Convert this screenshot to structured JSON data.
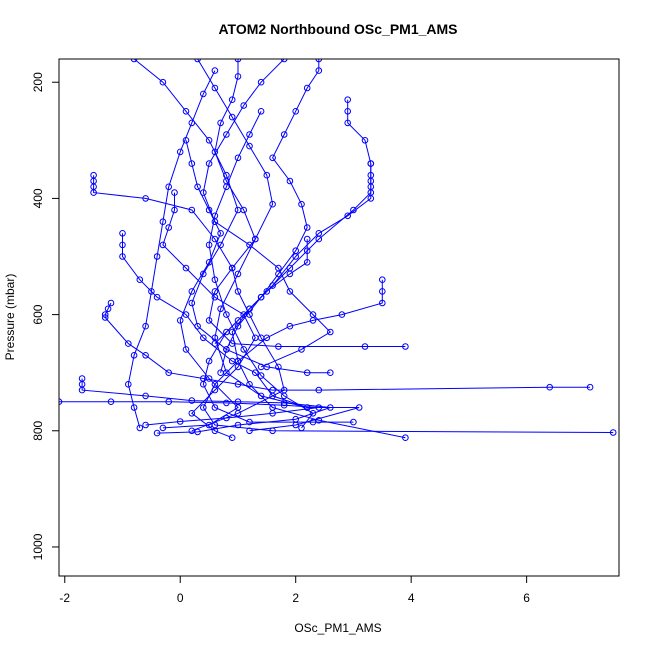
{
  "chart_data": {
    "type": "scatter",
    "title": "ATOM2 Northbound OSc_PM1_AMS",
    "xlabel": "OSc_PM1_AMS",
    "ylabel": "Pressure (mbar)",
    "xlim": [
      -2.1,
      7.6
    ],
    "ylim": [
      1050,
      160
    ],
    "y_reversed": true,
    "xticks": [
      -2,
      0,
      2,
      4,
      6
    ],
    "yticks": [
      200,
      400,
      600,
      800,
      1000
    ],
    "grid": false,
    "legend": "none",
    "connected": true,
    "colors": {
      "series": "#0000ff",
      "axis": "#000000"
    },
    "series": [
      {
        "values": [
          [
            -1.5,
            360
          ],
          [
            -1.5,
            370
          ],
          [
            -1.5,
            380
          ],
          [
            -1.5,
            390
          ],
          [
            -0.6,
            400
          ],
          [
            0.2,
            420
          ],
          [
            0.6,
            470
          ],
          [
            0.9,
            520
          ],
          [
            1.0,
            560
          ],
          [
            1.2,
            600
          ],
          [
            1.4,
            640
          ],
          [
            1.7,
            690
          ],
          [
            1.8,
            730
          ],
          [
            1.0,
            770
          ],
          [
            0.2,
            800
          ]
        ]
      },
      {
        "values": [
          [
            -1.0,
            460
          ],
          [
            -1.0,
            480
          ],
          [
            -1.0,
            500
          ],
          [
            -0.7,
            540
          ],
          [
            -0.4,
            570
          ],
          [
            0.1,
            600
          ],
          [
            0.4,
            640
          ],
          [
            0.9,
            680
          ],
          [
            1.3,
            700
          ],
          [
            1.6,
            740
          ],
          [
            2.2,
            760
          ],
          [
            3.1,
            760
          ],
          [
            2.0,
            790
          ],
          [
            1.2,
            800
          ]
        ]
      },
      {
        "values": [
          [
            -1.2,
            580
          ],
          [
            -1.25,
            590
          ],
          [
            -1.3,
            600
          ],
          [
            -1.3,
            605
          ],
          [
            -0.9,
            650
          ],
          [
            -0.6,
            670
          ],
          [
            -0.2,
            700
          ],
          [
            0.4,
            710
          ],
          [
            1.0,
            720
          ],
          [
            1.6,
            730
          ],
          [
            2.4,
            730
          ],
          [
            6.4,
            725
          ],
          [
            7.1,
            725
          ]
        ]
      },
      {
        "values": [
          [
            -1.7,
            710
          ],
          [
            -1.7,
            720
          ],
          [
            -1.7,
            730
          ],
          [
            -0.6,
            740
          ],
          [
            0.2,
            748
          ],
          [
            1.0,
            750
          ],
          [
            1.8,
            752
          ],
          [
            2.6,
            760
          ],
          [
            2.0,
            780
          ],
          [
            1.0,
            790
          ],
          [
            0.3,
            802
          ],
          [
            -0.4,
            804
          ]
        ]
      },
      {
        "values": [
          [
            -2.1,
            750
          ],
          [
            -1.2,
            750
          ],
          [
            -0.2,
            750
          ],
          [
            0.8,
            752
          ],
          [
            1.8,
            756
          ],
          [
            2.4,
            760
          ],
          [
            1.6,
            770
          ],
          [
            0.8,
            778
          ],
          [
            0.0,
            784
          ],
          [
            -0.6,
            790
          ]
        ]
      },
      {
        "values": [
          [
            -0.8,
            160
          ],
          [
            -0.3,
            200
          ],
          [
            0.1,
            250
          ],
          [
            0.5,
            300
          ],
          [
            0.8,
            360
          ],
          [
            1.0,
            420
          ],
          [
            0.7,
            480
          ],
          [
            0.4,
            530
          ],
          [
            0.2,
            580
          ],
          [
            0.3,
            620
          ],
          [
            0.8,
            660
          ],
          [
            1.5,
            690
          ],
          [
            2.2,
            700
          ],
          [
            2.6,
            700
          ]
        ]
      },
      {
        "values": [
          [
            0.3,
            160
          ],
          [
            0.6,
            210
          ],
          [
            0.9,
            260
          ],
          [
            1.2,
            310
          ],
          [
            1.5,
            360
          ],
          [
            1.6,
            410
          ],
          [
            1.3,
            470
          ],
          [
            0.9,
            520
          ],
          [
            0.6,
            560
          ],
          [
            0.5,
            610
          ],
          [
            0.9,
            650
          ],
          [
            1.7,
            655
          ],
          [
            3.2,
            655
          ],
          [
            3.9,
            655
          ]
        ]
      },
      {
        "values": [
          [
            1.8,
            160
          ],
          [
            1.4,
            200
          ],
          [
            1.1,
            240
          ],
          [
            0.8,
            290
          ],
          [
            0.5,
            340
          ],
          [
            0.4,
            390
          ],
          [
            0.6,
            440
          ],
          [
            1.2,
            480
          ],
          [
            1.7,
            520
          ],
          [
            1.9,
            560
          ],
          [
            2.3,
            600
          ],
          [
            2.6,
            630
          ],
          [
            2.1,
            660
          ],
          [
            1.4,
            690
          ]
        ]
      },
      {
        "values": [
          [
            2.4,
            160
          ],
          [
            2.4,
            180
          ],
          [
            2.2,
            210
          ],
          [
            2.0,
            250
          ],
          [
            1.8,
            290
          ],
          [
            1.6,
            330
          ],
          [
            1.9,
            370
          ],
          [
            2.1,
            410
          ],
          [
            2.2,
            450
          ],
          [
            2.0,
            490
          ],
          [
            1.7,
            530
          ],
          [
            1.4,
            570
          ],
          [
            1.0,
            610
          ],
          [
            0.6,
            650
          ]
        ]
      },
      {
        "values": [
          [
            2.9,
            230
          ],
          [
            2.9,
            250
          ],
          [
            2.9,
            270
          ],
          [
            3.2,
            300
          ],
          [
            3.3,
            340
          ],
          [
            3.3,
            370
          ],
          [
            3.3,
            390
          ],
          [
            3.0,
            420
          ],
          [
            2.4,
            470
          ],
          [
            1.9,
            520
          ],
          [
            1.4,
            570
          ],
          [
            1.0,
            620
          ],
          [
            0.8,
            660
          ],
          [
            0.7,
            700
          ]
        ]
      },
      {
        "values": [
          [
            3.3,
            340
          ],
          [
            3.3,
            360
          ],
          [
            3.3,
            380
          ],
          [
            3.3,
            400
          ],
          [
            2.9,
            430
          ],
          [
            2.4,
            460
          ],
          [
            2.0,
            500
          ],
          [
            1.6,
            550
          ],
          [
            1.2,
            590
          ],
          [
            0.9,
            630
          ],
          [
            1.0,
            680
          ],
          [
            1.2,
            720
          ],
          [
            1.6,
            760
          ],
          [
            2.4,
            782
          ],
          [
            3.9,
            812
          ]
        ]
      },
      {
        "values": [
          [
            3.5,
            540
          ],
          [
            3.5,
            560
          ],
          [
            3.5,
            580
          ],
          [
            2.8,
            600
          ],
          [
            2.3,
            610
          ],
          [
            1.9,
            620
          ],
          [
            1.5,
            640
          ],
          [
            1.0,
            680
          ],
          [
            0.6,
            720
          ],
          [
            0.4,
            760
          ],
          [
            0.6,
            790
          ],
          [
            1.6,
            800
          ],
          [
            7.5,
            803
          ]
        ]
      },
      {
        "values": [
          [
            0.1,
            300
          ],
          [
            0.2,
            340
          ],
          [
            0.3,
            380
          ],
          [
            0.5,
            420
          ],
          [
            0.7,
            460
          ],
          [
            0.5,
            510
          ],
          [
            0.2,
            560
          ],
          [
            0.0,
            610
          ],
          [
            0.1,
            660
          ],
          [
            0.5,
            710
          ],
          [
            1.0,
            760
          ],
          [
            0.5,
            790
          ],
          [
            -0.3,
            795
          ]
        ]
      },
      {
        "values": [
          [
            1.0,
            160
          ],
          [
            1.0,
            190
          ],
          [
            0.9,
            230
          ],
          [
            0.7,
            270
          ],
          [
            0.6,
            320
          ],
          [
            0.8,
            370
          ],
          [
            1.1,
            420
          ],
          [
            1.3,
            470
          ],
          [
            1.0,
            530
          ],
          [
            0.7,
            590
          ],
          [
            0.6,
            640
          ],
          [
            0.8,
            700
          ],
          [
            1.4,
            740
          ],
          [
            2.2,
            760
          ]
        ]
      },
      {
        "values": [
          [
            -0.1,
            390
          ],
          [
            -0.1,
            420
          ],
          [
            -0.2,
            450
          ],
          [
            -0.3,
            480
          ],
          [
            0.1,
            520
          ],
          [
            0.6,
            570
          ],
          [
            1.1,
            600
          ],
          [
            1.3,
            640
          ],
          [
            1.0,
            690
          ],
          [
            0.6,
            730
          ],
          [
            0.2,
            770
          ],
          [
            0.6,
            800
          ],
          [
            0.9,
            812
          ]
        ]
      },
      {
        "values": [
          [
            2.2,
            470
          ],
          [
            2.2,
            490
          ],
          [
            2.2,
            510
          ],
          [
            1.9,
            530
          ],
          [
            1.5,
            560
          ],
          [
            1.2,
            590
          ],
          [
            0.8,
            630
          ],
          [
            0.5,
            680
          ],
          [
            0.4,
            720
          ],
          [
            0.6,
            760
          ],
          [
            1.2,
            785
          ],
          [
            2.3,
            785
          ],
          [
            3.0,
            785
          ]
        ]
      },
      {
        "values": [
          [
            0.6,
            180
          ],
          [
            0.4,
            220
          ],
          [
            0.2,
            270
          ],
          [
            0.0,
            320
          ],
          [
            -0.2,
            380
          ],
          [
            -0.3,
            440
          ],
          [
            -0.4,
            500
          ],
          [
            -0.5,
            560
          ],
          [
            -0.6,
            620
          ],
          [
            -0.8,
            670
          ],
          [
            -0.9,
            720
          ],
          [
            -0.8,
            760
          ],
          [
            -0.7,
            795
          ]
        ]
      },
      {
        "values": [
          [
            1.4,
            250
          ],
          [
            1.2,
            290
          ],
          [
            1.0,
            330
          ],
          [
            0.8,
            380
          ],
          [
            0.6,
            430
          ],
          [
            0.5,
            480
          ],
          [
            0.6,
            540
          ],
          [
            0.8,
            600
          ],
          [
            1.1,
            660
          ],
          [
            1.4,
            705
          ],
          [
            1.8,
            740
          ],
          [
            2.3,
            770
          ],
          [
            2.1,
            795
          ]
        ]
      }
    ]
  }
}
